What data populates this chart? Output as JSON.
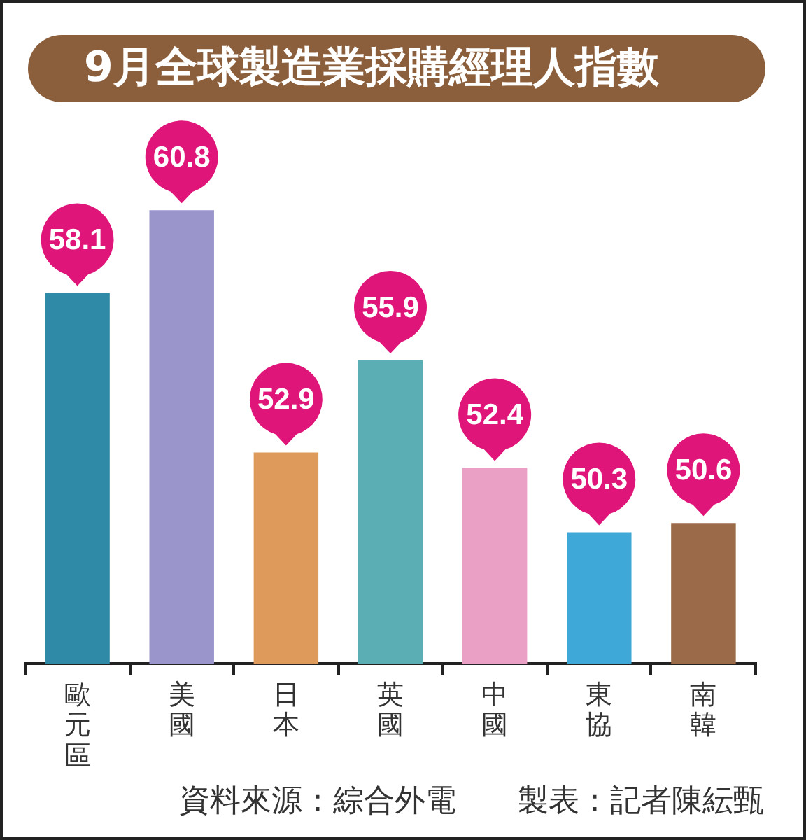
{
  "chart_data": {
    "type": "bar",
    "title": "9月全球製造業採購經理人指數",
    "categories": [
      "歐元區",
      "美國",
      "日本",
      "英國",
      "中國",
      "東協",
      "南韓"
    ],
    "values": [
      58.1,
      60.8,
      52.9,
      55.9,
      52.4,
      50.3,
      50.6
    ],
    "colors": [
      "#2e8aa6",
      "#9a96cc",
      "#dd9a5a",
      "#5aaeb4",
      "#eaa0c4",
      "#3ea8d8",
      "#9b6a48"
    ],
    "tick_labels": "x",
    "data_labels": true,
    "annotations": [
      "資料來源：綜合外電",
      "製表：記者陳紜甄"
    ]
  }
}
